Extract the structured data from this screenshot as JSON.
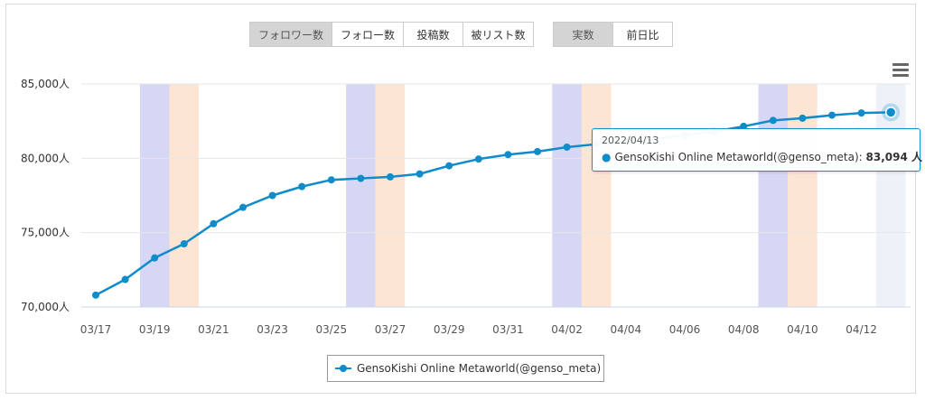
{
  "buttons": {
    "metric": [
      {
        "label": "フォロワー数",
        "active": true
      },
      {
        "label": "フォロー数",
        "active": false
      },
      {
        "label": "投稿数",
        "active": false
      },
      {
        "label": "被リスト数",
        "active": false
      }
    ],
    "mode": [
      {
        "label": "実数",
        "active": true
      },
      {
        "label": "前日比",
        "active": false
      }
    ]
  },
  "tooltip": {
    "date": "2022/04/13",
    "series": "GensoKishi Online Metaworld(@genso_meta):",
    "value": "83,094 人"
  },
  "legend": {
    "label": "GensoKishi Online Metaworld(@genso_meta)"
  },
  "colors": {
    "series": "#0f8cc9",
    "saturday_band": "#d6d6f5",
    "sunday_band": "#fde5d3",
    "hover_band": "#eef2f8"
  },
  "chart_data": {
    "type": "line",
    "grid": true,
    "legend_position": "bottom",
    "y_unit": "人",
    "ylim": [
      70000,
      85000
    ],
    "y_ticks": [
      70000,
      75000,
      80000,
      85000
    ],
    "y_tick_labels": [
      "70,000人",
      "75,000人",
      "80,000人",
      "85,000人"
    ],
    "x_tick_labels": [
      "03/17",
      "03/19",
      "03/21",
      "03/23",
      "03/25",
      "03/27",
      "03/29",
      "03/31",
      "04/02",
      "04/04",
      "04/06",
      "04/08",
      "04/10",
      "04/12"
    ],
    "x": [
      "2022/03/17",
      "2022/03/18",
      "2022/03/19",
      "2022/03/20",
      "2022/03/21",
      "2022/03/22",
      "2022/03/23",
      "2022/03/24",
      "2022/03/25",
      "2022/03/26",
      "2022/03/27",
      "2022/03/28",
      "2022/03/29",
      "2022/03/30",
      "2022/03/31",
      "2022/04/01",
      "2022/04/02",
      "2022/04/03",
      "2022/04/04",
      "2022/04/05",
      "2022/04/06",
      "2022/04/07",
      "2022/04/08",
      "2022/04/09",
      "2022/04/10",
      "2022/04/11",
      "2022/04/12",
      "2022/04/13"
    ],
    "series": [
      {
        "name": "GensoKishi Online Metaworld(@genso_meta)",
        "values": [
          70800,
          71850,
          73300,
          74250,
          75600,
          76700,
          77500,
          78100,
          78550,
          78650,
          78750,
          78950,
          79500,
          79950,
          80250,
          80450,
          80750,
          80950,
          81100,
          81300,
          81550,
          81800,
          82150,
          82550,
          82700,
          82900,
          83050,
          83094
        ]
      }
    ],
    "weekend_bands": [
      {
        "date": "2022/03/19",
        "kind": "saturday"
      },
      {
        "date": "2022/03/20",
        "kind": "sunday"
      },
      {
        "date": "2022/03/26",
        "kind": "saturday"
      },
      {
        "date": "2022/03/27",
        "kind": "sunday"
      },
      {
        "date": "2022/04/02",
        "kind": "saturday"
      },
      {
        "date": "2022/04/03",
        "kind": "sunday"
      },
      {
        "date": "2022/04/09",
        "kind": "saturday"
      },
      {
        "date": "2022/04/10",
        "kind": "sunday"
      }
    ],
    "highlighted_point": "2022/04/13"
  }
}
